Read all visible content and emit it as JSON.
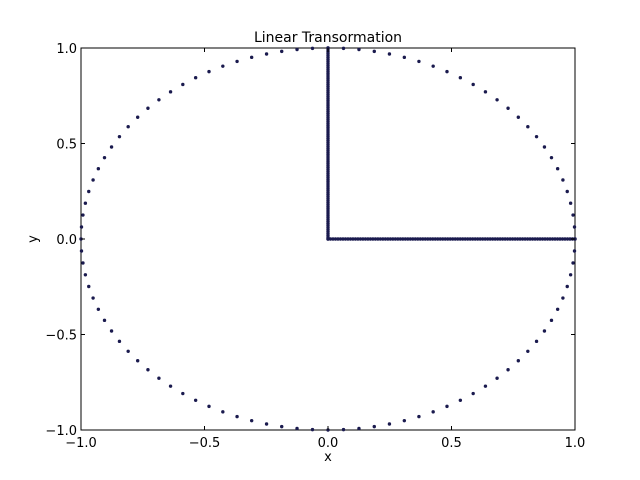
{
  "chart_data": {
    "type": "scatter",
    "title": "Linear Transormation",
    "xlabel": "x",
    "ylabel": "y",
    "xlim": [
      -1.0,
      1.0
    ],
    "ylim": [
      -1.0,
      1.0
    ],
    "grid": false,
    "legend": "none",
    "x_ticks": [
      "−1.0",
      "−0.5",
      "0.0",
      "0.5",
      "1.0"
    ],
    "y_ticks": [
      "−1.0",
      "−0.5",
      "0.0",
      "0.5",
      "1.0"
    ],
    "marker_color": "#1a1a4e",
    "series": [
      {
        "shape": "circle",
        "center": [
          0,
          0
        ],
        "radius": 1.0,
        "n_points": 100
      },
      {
        "shape": "segment",
        "from": [
          0,
          0
        ],
        "to": [
          1,
          0
        ],
        "n_points": 100
      },
      {
        "shape": "segment",
        "from": [
          0,
          0
        ],
        "to": [
          0,
          1
        ],
        "n_points": 100
      }
    ]
  }
}
